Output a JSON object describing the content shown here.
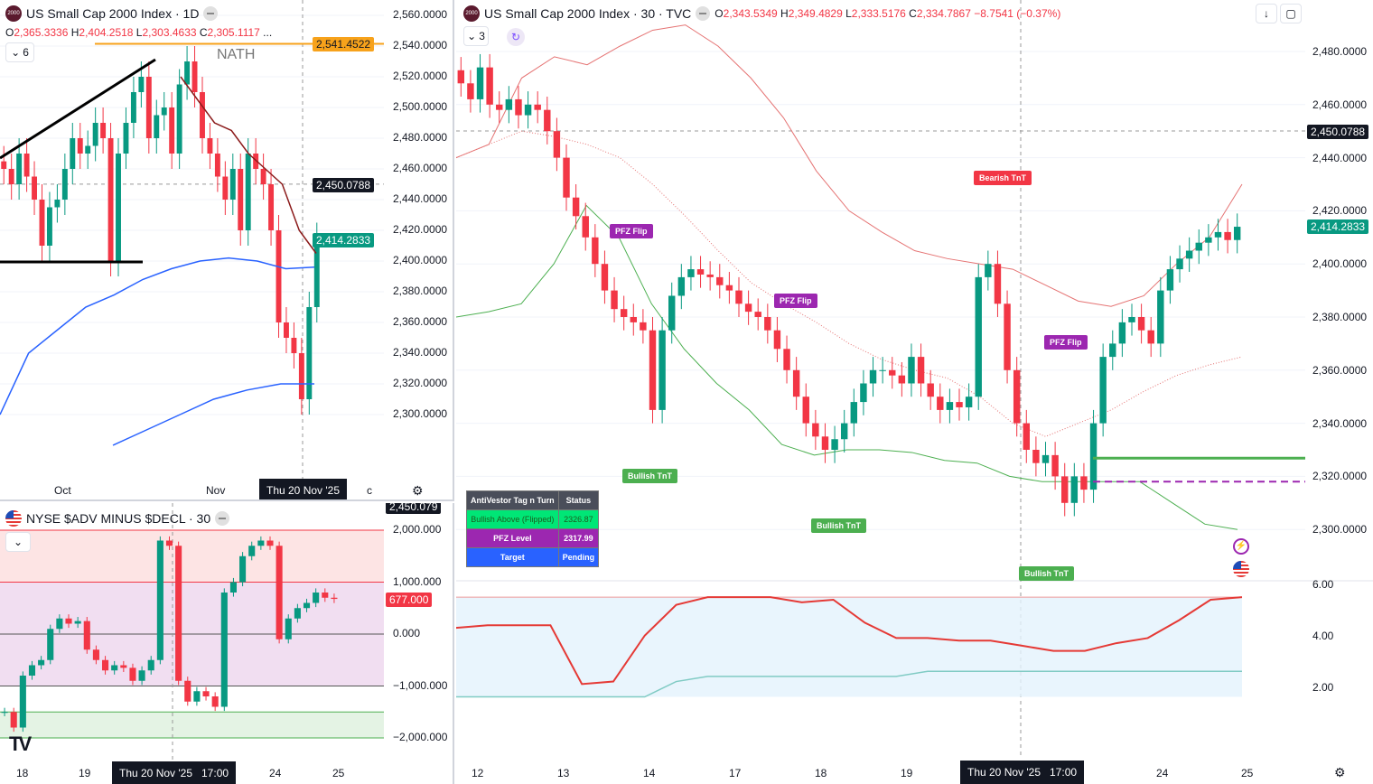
{
  "top_left": {
    "title": "US Small Cap 2000 Index · 1D",
    "ohlc": {
      "o": "2,365.3336",
      "h": "2,404.2518",
      "l": "2,303.4633",
      "c": "2,305.1117",
      "more": "..."
    },
    "overlay_text": "NATH",
    "indicators_count": "6",
    "price_axis": [
      "2,560.0000",
      "2,540.0000",
      "2,520.0000",
      "2,500.0000",
      "2,480.0000",
      "2,460.0000",
      "2,440.0000",
      "2,420.0000",
      "2,400.0000",
      "2,380.0000",
      "2,360.0000",
      "2,340.0000",
      "2,320.0000",
      "2,300.0000"
    ],
    "badges": {
      "orange": "2,541.4522",
      "crosshair": "2,450.0788",
      "last": "2,414.2833"
    },
    "time_axis": [
      "Oct",
      "Nov",
      "c"
    ],
    "crosshair_time": "Thu 20 Nov '25",
    "closes": [
      2460,
      2450,
      2470,
      2455,
      2440,
      2410,
      2435,
      2440,
      2460,
      2480,
      2470,
      2475,
      2490,
      2480,
      2400,
      2470,
      2490,
      2510,
      2520,
      2480,
      2495,
      2500,
      2470,
      2515,
      2530,
      2510,
      2480,
      2470,
      2455,
      2440,
      2460,
      2420,
      2470,
      2460,
      2450,
      2420,
      2360,
      2350,
      2340,
      2310,
      2370,
      2415
    ]
  },
  "bottom_left": {
    "title": "NYSE $ADV MINUS $DECL · 30",
    "price_axis": [
      "2,000.000",
      "1,000.000",
      "0.000",
      "−1,000.000",
      "−2,000.000"
    ],
    "badges": {
      "crosshair": "2,450.079",
      "last": "677.000"
    },
    "time_axis": [
      "18",
      "19",
      "24",
      "25"
    ],
    "crosshair_time": "Thu 20 Nov '25   17:00",
    "closes": [
      -1500,
      -1800,
      -800,
      -600,
      -500,
      100,
      300,
      200,
      250,
      -300,
      -500,
      -700,
      -600,
      -650,
      -900,
      -700,
      -500,
      1800,
      1700,
      -900,
      -1300,
      -1100,
      -1200,
      -1400,
      800,
      1000,
      1500,
      1700,
      1800,
      1700,
      -100,
      300,
      500,
      600,
      800,
      700,
      677
    ]
  },
  "right": {
    "title": "US Small Cap 2000 Index · 30 · TVC",
    "ohlc": {
      "o": "2,343.5349",
      "h": "2,349.4829",
      "l": "2,333.5176",
      "c": "2,334.7867",
      "chg": "−8.7541 (−0.37%)"
    },
    "indicators_count": "3",
    "price_axis": [
      "2,480.0000",
      "2,460.0000",
      "2,440.0000",
      "2,420.0000",
      "2,400.0000",
      "2,380.0000",
      "2,360.0000",
      "2,340.0000",
      "2,320.0000",
      "2,300.0000"
    ],
    "osc_axis": [
      "6.00",
      "4.00",
      "2.00"
    ],
    "badges": {
      "crosshair": "2,450.0788",
      "last": "2,414.2833"
    },
    "time_axis": [
      "12",
      "13",
      "14",
      "17",
      "18",
      "19",
      "24",
      "25"
    ],
    "crosshair_time": "Thu 20 Nov '25   17:00",
    "tags": {
      "pfz": "PFZ Flip",
      "bearish": "Bearish TnT",
      "bullish": "Bullish TnT"
    },
    "table": {
      "header": [
        "AntiVestor Tag n Turn",
        "Status"
      ],
      "rows": [
        [
          "Bullish Above (Flipped)",
          "2326.87"
        ],
        [
          "PFZ Level",
          "2317.99"
        ],
        [
          "Target",
          "Pending"
        ]
      ]
    },
    "levels": {
      "bullish_above": 2326.87,
      "pfz": 2317.99,
      "crosshair": 2450.0788
    },
    "closes": [
      2468,
      2462,
      2474,
      2460,
      2458,
      2462,
      2456,
      2460,
      2458,
      2450,
      2440,
      2425,
      2418,
      2410,
      2400,
      2390,
      2383,
      2380,
      2378,
      2375,
      2345,
      2375,
      2388,
      2395,
      2398,
      2396,
      2395,
      2392,
      2390,
      2385,
      2382,
      2380,
      2375,
      2368,
      2360,
      2350,
      2340,
      2335,
      2330,
      2334,
      2340,
      2348,
      2355,
      2360,
      2360,
      2358,
      2355,
      2365,
      2355,
      2350,
      2345,
      2348,
      2346,
      2350,
      2395,
      2400,
      2385,
      2360,
      2340,
      2330,
      2325,
      2328,
      2320,
      2310,
      2320,
      2315,
      2340,
      2365,
      2370,
      2378,
      2380,
      2375,
      2370,
      2390,
      2398,
      2402,
      2405,
      2408,
      2410,
      2412,
      2409,
      2414
    ],
    "upper_band": [
      2440,
      2445,
      2470,
      2478,
      2475,
      2482,
      2488,
      2490,
      2482,
      2470,
      2455,
      2435,
      2420,
      2412,
      2405,
      2402,
      2400,
      2398,
      2392,
      2386,
      2384,
      2388,
      2400,
      2410,
      2430
    ],
    "lower_band": [
      2380,
      2382,
      2385,
      2400,
      2422,
      2410,
      2385,
      2368,
      2355,
      2345,
      2332,
      2328,
      2330,
      2330,
      2329,
      2326,
      2325,
      2320,
      2318,
      2318,
      2318,
      2318,
      2310,
      2302,
      2300
    ],
    "mid_line": [
      2440,
      2445,
      2450,
      2448,
      2445,
      2440,
      2430,
      2418,
      2405,
      2393,
      2385,
      2378,
      2370,
      2364,
      2360,
      2357,
      2350,
      2340,
      2335,
      2340,
      2345,
      2352,
      2358,
      2362,
      2365
    ],
    "osc_line": [
      4.3,
      4.4,
      4.4,
      4.4,
      2.1,
      2.2,
      4.0,
      5.2,
      5.5,
      5.5,
      5.5,
      5.3,
      5.4,
      4.5,
      3.9,
      3.9,
      3.8,
      3.8,
      3.6,
      3.4,
      3.4,
      3.7,
      3.9,
      4.6,
      5.4,
      5.5
    ],
    "osc_lower": [
      1.6,
      1.6,
      1.6,
      1.6,
      1.6,
      1.6,
      1.6,
      2.2,
      2.4,
      2.4,
      2.4,
      2.4,
      2.4,
      2.4,
      2.4,
      2.6,
      2.6,
      2.6,
      2.6,
      2.6,
      2.6,
      2.6,
      2.6,
      2.6,
      2.6,
      2.6
    ]
  },
  "colors": {
    "up": "#089981",
    "down": "#f23645",
    "orange": "#f7a21b",
    "purple": "#9c27b0",
    "green": "#4caf50",
    "blue": "#2962ff",
    "dark": "#131722"
  }
}
